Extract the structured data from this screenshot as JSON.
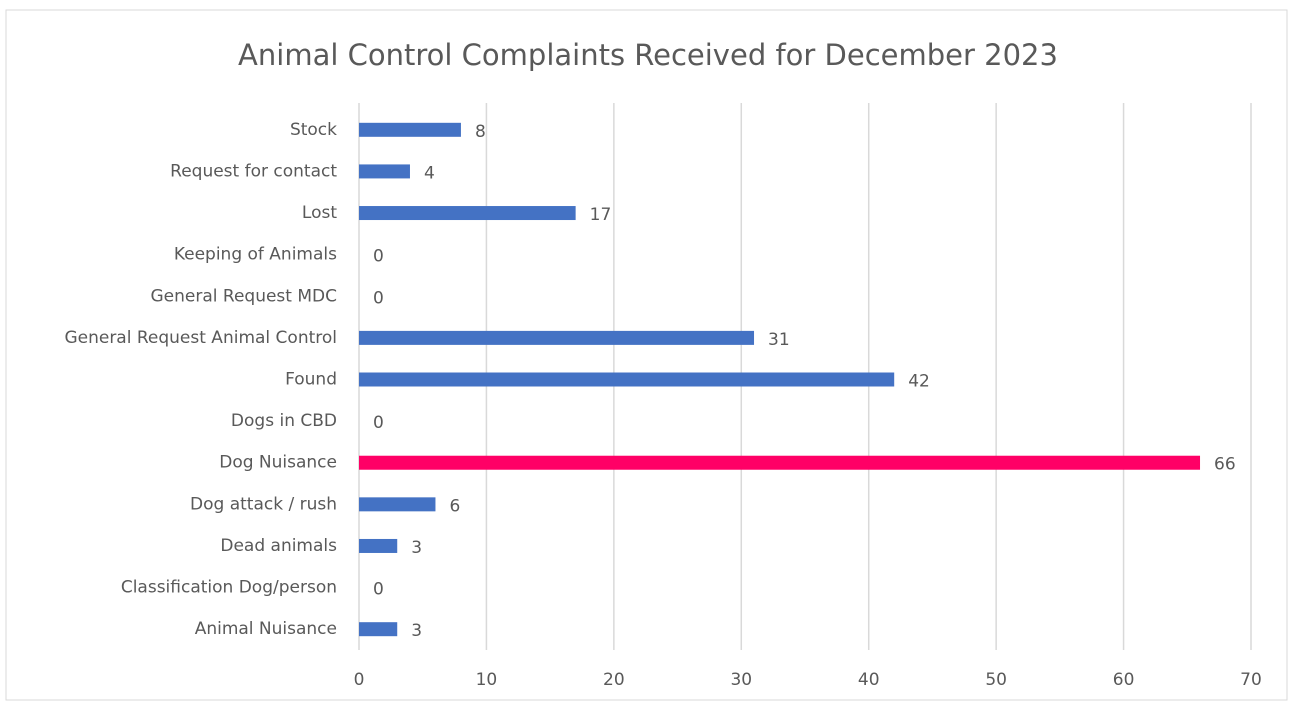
{
  "chart_data": {
    "type": "hbar",
    "title": "Animal Control Complaints Received for December 2023",
    "categories": [
      "Stock",
      "Request for contact",
      "Lost",
      "Keeping of Animals",
      "General Request MDC",
      "General Request Animal Control",
      "Found",
      "Dogs in CBD",
      "Dog Nuisance",
      "Dog attack / rush",
      "Dead animals",
      "Classification Dog/person",
      "Animal Nuisance"
    ],
    "values": [
      8,
      4,
      17,
      0,
      0,
      31,
      42,
      0,
      66,
      6,
      3,
      0,
      3
    ],
    "colors": [
      "#4472c4",
      "#4472c4",
      "#4472c4",
      "#4472c4",
      "#4472c4",
      "#4472c4",
      "#4472c4",
      "#4472c4",
      "#ff0066",
      "#4472c4",
      "#4472c4",
      "#4472c4",
      "#4472c4"
    ],
    "xlim": [
      0,
      70
    ],
    "xticks": [
      0,
      10,
      20,
      30,
      40,
      50,
      60,
      70
    ],
    "grid": true
  }
}
